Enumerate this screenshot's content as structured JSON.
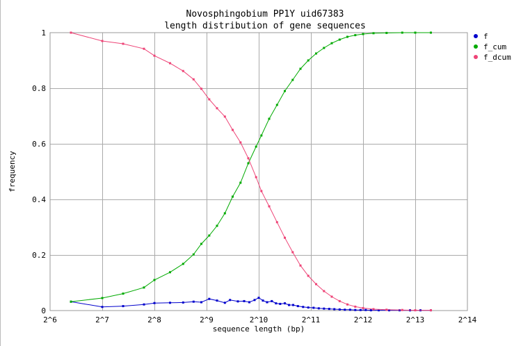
{
  "chart_data": {
    "type": "line",
    "title": "Novosphingobium PP1Y uid67383",
    "subtitle": "length distribution of gene sequences",
    "xlabel": "sequence length (bp)",
    "ylabel": "frequency",
    "x_scale": "log2",
    "xlim_log2": [
      6,
      14
    ],
    "ylim": [
      0,
      1
    ],
    "x_ticks": [
      {
        "log2": 6,
        "label": "2^6"
      },
      {
        "log2": 7,
        "label": "2^7"
      },
      {
        "log2": 8,
        "label": "2^8"
      },
      {
        "log2": 9,
        "label": "2^9"
      },
      {
        "log2": 10,
        "label": "2^10"
      },
      {
        "log2": 11,
        "label": "2^11"
      },
      {
        "log2": 12,
        "label": "2^12"
      },
      {
        "log2": 13,
        "label": "2^13"
      },
      {
        "log2": 14,
        "label": "2^14"
      }
    ],
    "y_ticks": [
      {
        "value": 0,
        "label": "0"
      },
      {
        "value": 0.2,
        "label": "0.2"
      },
      {
        "value": 0.4,
        "label": "0.4"
      },
      {
        "value": 0.6,
        "label": "0.6"
      },
      {
        "value": 0.8,
        "label": "0.8"
      },
      {
        "value": 1,
        "label": "1"
      }
    ],
    "grid": true,
    "legend_position": "top-right outside",
    "series": [
      {
        "name": "f",
        "color": "#0000cc",
        "points": [
          [
            6.4,
            0.032
          ],
          [
            7.0,
            0.013
          ],
          [
            7.4,
            0.016
          ],
          [
            7.8,
            0.022
          ],
          [
            8.0,
            0.027
          ],
          [
            8.3,
            0.028
          ],
          [
            8.55,
            0.029
          ],
          [
            8.75,
            0.032
          ],
          [
            8.9,
            0.03
          ],
          [
            9.05,
            0.042
          ],
          [
            9.2,
            0.036
          ],
          [
            9.35,
            0.028
          ],
          [
            9.45,
            0.038
          ],
          [
            9.6,
            0.033
          ],
          [
            9.72,
            0.034
          ],
          [
            9.82,
            0.03
          ],
          [
            9.92,
            0.038
          ],
          [
            10.0,
            0.046
          ],
          [
            10.08,
            0.036
          ],
          [
            10.16,
            0.03
          ],
          [
            10.25,
            0.034
          ],
          [
            10.33,
            0.026
          ],
          [
            10.41,
            0.024
          ],
          [
            10.5,
            0.026
          ],
          [
            10.58,
            0.02
          ],
          [
            10.66,
            0.02
          ],
          [
            10.75,
            0.016
          ],
          [
            10.85,
            0.013
          ],
          [
            10.95,
            0.011
          ],
          [
            11.05,
            0.01
          ],
          [
            11.15,
            0.008
          ],
          [
            11.25,
            0.007
          ],
          [
            11.35,
            0.006
          ],
          [
            11.45,
            0.005
          ],
          [
            11.55,
            0.004
          ],
          [
            11.65,
            0.003
          ],
          [
            11.75,
            0.003
          ],
          [
            11.85,
            0.002
          ],
          [
            11.95,
            0.002
          ],
          [
            12.05,
            0.002
          ],
          [
            12.15,
            0.001
          ],
          [
            12.3,
            0.001
          ],
          [
            12.5,
            0.001
          ],
          [
            12.7,
            0.001
          ],
          [
            12.9,
            0.001
          ],
          [
            13.1,
            0.001
          ],
          [
            13.3,
            0.001
          ]
        ]
      },
      {
        "name": "f_cum",
        "color": "#00aa00",
        "points": [
          [
            6.4,
            0.032
          ],
          [
            7.0,
            0.045
          ],
          [
            7.4,
            0.061
          ],
          [
            7.8,
            0.083
          ],
          [
            8.0,
            0.11
          ],
          [
            8.3,
            0.138
          ],
          [
            8.55,
            0.168
          ],
          [
            8.75,
            0.202
          ],
          [
            8.9,
            0.24
          ],
          [
            9.05,
            0.27
          ],
          [
            9.2,
            0.305
          ],
          [
            9.35,
            0.35
          ],
          [
            9.5,
            0.41
          ],
          [
            9.65,
            0.46
          ],
          [
            9.8,
            0.53
          ],
          [
            9.95,
            0.59
          ],
          [
            10.05,
            0.63
          ],
          [
            10.2,
            0.69
          ],
          [
            10.35,
            0.74
          ],
          [
            10.5,
            0.79
          ],
          [
            10.65,
            0.83
          ],
          [
            10.8,
            0.87
          ],
          [
            10.95,
            0.9
          ],
          [
            11.1,
            0.925
          ],
          [
            11.25,
            0.945
          ],
          [
            11.4,
            0.962
          ],
          [
            11.55,
            0.975
          ],
          [
            11.7,
            0.985
          ],
          [
            11.85,
            0.991
          ],
          [
            12.0,
            0.995
          ],
          [
            12.2,
            0.998
          ],
          [
            12.45,
            0.999
          ],
          [
            12.75,
            1.0
          ],
          [
            13.0,
            1.0
          ],
          [
            13.3,
            1.0
          ]
        ]
      },
      {
        "name": "f_dcum",
        "color": "#ee4477",
        "points": [
          [
            6.4,
            1.0
          ],
          [
            7.0,
            0.97
          ],
          [
            7.4,
            0.96
          ],
          [
            7.8,
            0.942
          ],
          [
            8.0,
            0.917
          ],
          [
            8.3,
            0.89
          ],
          [
            8.55,
            0.862
          ],
          [
            8.75,
            0.832
          ],
          [
            8.9,
            0.798
          ],
          [
            9.05,
            0.76
          ],
          [
            9.2,
            0.728
          ],
          [
            9.35,
            0.698
          ],
          [
            9.5,
            0.65
          ],
          [
            9.65,
            0.605
          ],
          [
            9.8,
            0.548
          ],
          [
            9.95,
            0.48
          ],
          [
            10.05,
            0.43
          ],
          [
            10.2,
            0.375
          ],
          [
            10.35,
            0.318
          ],
          [
            10.5,
            0.262
          ],
          [
            10.65,
            0.21
          ],
          [
            10.8,
            0.162
          ],
          [
            10.95,
            0.125
          ],
          [
            11.1,
            0.095
          ],
          [
            11.25,
            0.07
          ],
          [
            11.4,
            0.05
          ],
          [
            11.55,
            0.034
          ],
          [
            11.7,
            0.022
          ],
          [
            11.85,
            0.014
          ],
          [
            12.0,
            0.009
          ],
          [
            12.2,
            0.005
          ],
          [
            12.45,
            0.003
          ],
          [
            12.75,
            0.002
          ],
          [
            13.0,
            0.001
          ],
          [
            13.3,
            0.001
          ]
        ]
      }
    ]
  }
}
